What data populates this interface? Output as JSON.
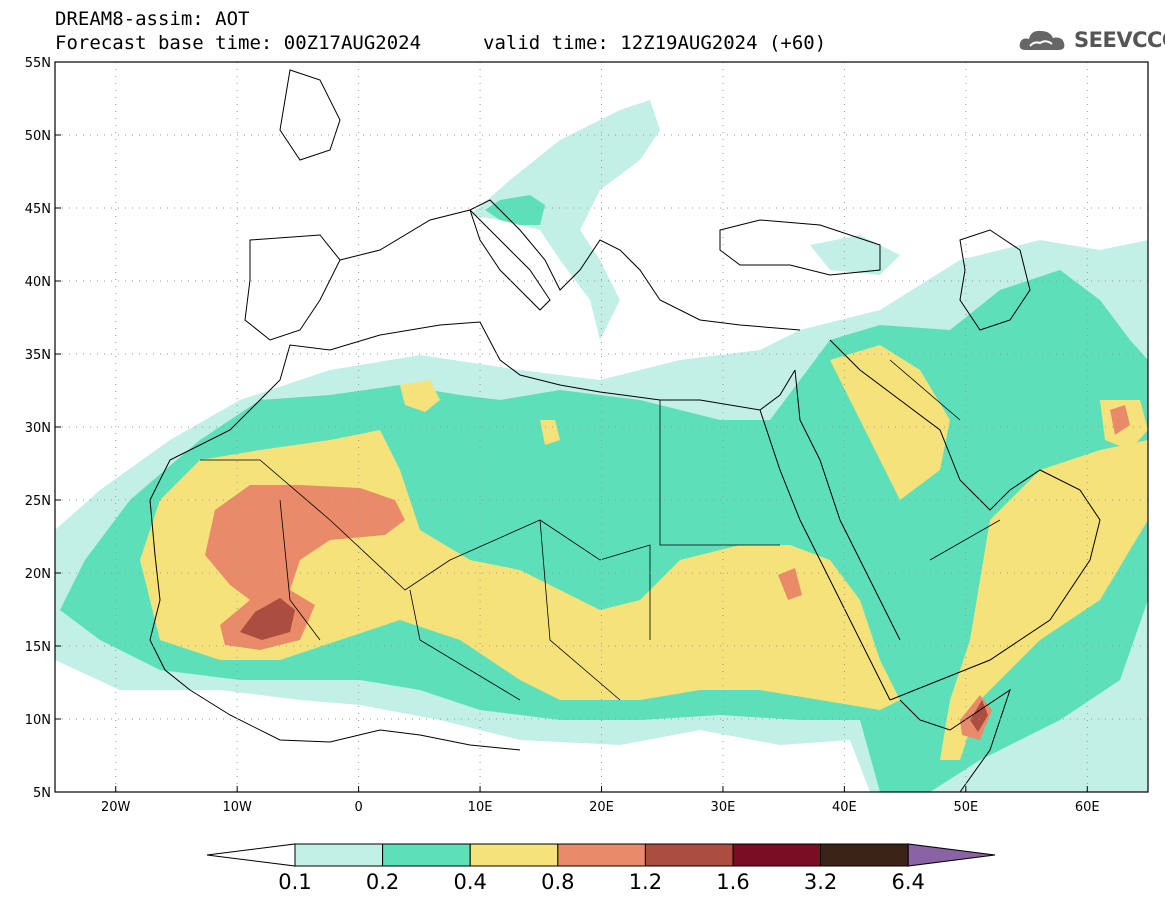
{
  "header": {
    "title": "DREAM8-assim: AOT",
    "base_time": "Forecast base time: 00Z17AUG2024",
    "valid_time": "valid time: 12Z19AUG2024 (+60)",
    "logo_text": "SEEVCCC",
    "logo_icon": "cloud-logo-icon"
  },
  "map": {
    "projection": "lat-lon",
    "lon_range": [
      -25,
      65
    ],
    "lat_range": [
      5,
      55
    ],
    "lon_ticks": [
      {
        "value": -20,
        "label": "20W"
      },
      {
        "value": -10,
        "label": "10W"
      },
      {
        "value": 0,
        "label": "0"
      },
      {
        "value": 10,
        "label": "10E"
      },
      {
        "value": 20,
        "label": "20E"
      },
      {
        "value": 30,
        "label": "30E"
      },
      {
        "value": 40,
        "label": "40E"
      },
      {
        "value": 50,
        "label": "50E"
      },
      {
        "value": 60,
        "label": "60E"
      }
    ],
    "lat_ticks": [
      {
        "value": 55,
        "label": "55N"
      },
      {
        "value": 50,
        "label": "50N"
      },
      {
        "value": 45,
        "label": "45N"
      },
      {
        "value": 40,
        "label": "40N"
      },
      {
        "value": 35,
        "label": "35N"
      },
      {
        "value": 30,
        "label": "30N"
      },
      {
        "value": 25,
        "label": "25N"
      },
      {
        "value": 20,
        "label": "20N"
      },
      {
        "value": 15,
        "label": "15N"
      },
      {
        "value": 10,
        "label": "10N"
      },
      {
        "value": 5,
        "label": "5N"
      }
    ],
    "grid": true
  },
  "colorbar": {
    "levels": [
      "0.1",
      "0.2",
      "0.4",
      "0.8",
      "1.2",
      "1.6",
      "3.2",
      "6.4"
    ],
    "colors": [
      "#ffffff",
      "#c2efe6",
      "#5ddfb9",
      "#f5e27a",
      "#e98b68",
      "#ab4d3f",
      "#7b0d23",
      "#3b2417",
      "#8b62a3"
    ]
  },
  "colors": {
    "c1": "#c2efe6",
    "c2": "#5ddfb9",
    "c3": "#f5e27a",
    "c4": "#e98b68",
    "c5": "#ab4d3f",
    "c6": "#7b0d23"
  }
}
